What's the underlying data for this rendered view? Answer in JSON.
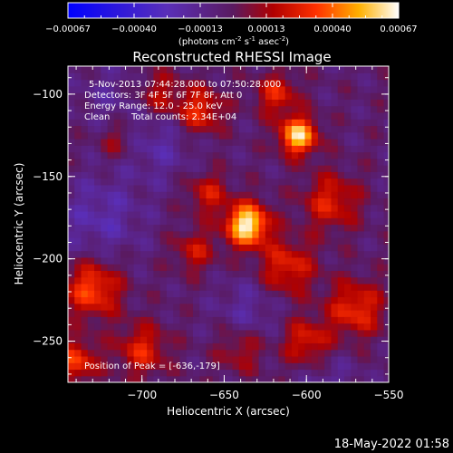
{
  "chart_data": {
    "type": "heatmap",
    "title": "Reconstructed RHESSI Image",
    "xlabel": "Heliocentric X (arcsec)",
    "ylabel": "Heliocentric Y (arcsec)",
    "xlim": [
      -745,
      -550
    ],
    "ylim": [
      -275,
      -83
    ],
    "xticks": [
      -700,
      -650,
      -600,
      -550
    ],
    "yticks": [
      -100,
      -150,
      -200,
      -250
    ],
    "colorbar": {
      "min": -0.00067,
      "max": 0.00067,
      "ticks": [
        "-0.00067",
        "-0.00040",
        "-0.00013",
        "0.00013",
        "0.00040",
        "0.00067"
      ],
      "unit_base": "(photons cm",
      "unit_exp1": "-2",
      "unit_mid": " s",
      "unit_exp2": "-1",
      "unit_mid2": " asec",
      "unit_exp3": "-2",
      "unit_end": ")"
    },
    "annotations": {
      "time_range": "5-Nov-2013 07:44:28.000 to 07:50:28.000",
      "detectors": "Detectors: 3F 4F 5F 6F 7F 8F, Att 0",
      "energy": "Energy Range: 12.0 - 25.0 keV",
      "clean_label": "Clean",
      "total_counts": "Total counts: 2.34E+04",
      "peak": "Position of Peak = [-636,-179]"
    },
    "peak": {
      "x": -636,
      "y": -179
    },
    "sources": [
      {
        "x": -636,
        "y": -179,
        "amp": 0.0007,
        "r": 9
      },
      {
        "x": -605,
        "y": -125,
        "amp": 0.00062,
        "r": 8
      },
      {
        "x": -618,
        "y": -100,
        "amp": 0.0003,
        "r": 9
      },
      {
        "x": -665,
        "y": -110,
        "amp": 0.00034,
        "r": 10
      },
      {
        "x": -690,
        "y": -100,
        "amp": 0.00022,
        "r": 10
      },
      {
        "x": -715,
        "y": -128,
        "amp": 0.00018,
        "r": 8
      },
      {
        "x": -660,
        "y": -160,
        "amp": 0.00026,
        "r": 9
      },
      {
        "x": -668,
        "y": -195,
        "amp": 0.00024,
        "r": 9
      },
      {
        "x": -612,
        "y": -205,
        "amp": 0.00032,
        "r": 12
      },
      {
        "x": -585,
        "y": -165,
        "amp": 0.0003,
        "r": 12
      },
      {
        "x": -570,
        "y": -230,
        "amp": 0.00034,
        "r": 12
      },
      {
        "x": -600,
        "y": -250,
        "amp": 0.0003,
        "r": 10
      },
      {
        "x": -730,
        "y": -218,
        "amp": 0.0004,
        "r": 12
      },
      {
        "x": -700,
        "y": -255,
        "amp": 0.0003,
        "r": 11
      },
      {
        "x": -740,
        "y": -262,
        "amp": 0.00036,
        "r": 9
      },
      {
        "x": -640,
        "y": -255,
        "amp": 0.0002,
        "r": 10
      },
      {
        "x": -725,
        "y": -175,
        "amp": -0.00018,
        "r": 18
      },
      {
        "x": -690,
        "y": -130,
        "amp": -0.00015,
        "r": 16
      },
      {
        "x": -720,
        "y": -100,
        "amp": -0.0001,
        "r": 14
      },
      {
        "x": -635,
        "y": -230,
        "amp": -0.00014,
        "r": 14
      },
      {
        "x": -585,
        "y": -275,
        "amp": -0.00012,
        "r": 12
      }
    ]
  },
  "footer": {
    "date": "18-May-2022 01:58"
  }
}
